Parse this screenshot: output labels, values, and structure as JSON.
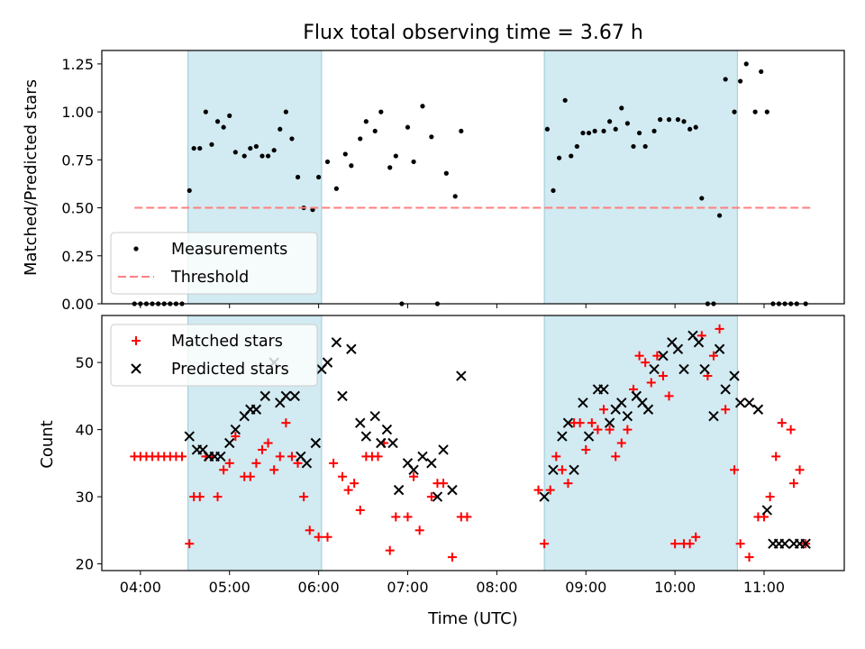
{
  "chart_data": [
    {
      "type": "scatter",
      "title": "Flux total observing time = 3.67 h",
      "xlabel": "",
      "ylabel": "Matched/Predicted stars",
      "xlim": [
        "03:34",
        "11:54"
      ],
      "ylim": [
        0,
        1.32
      ],
      "yticks": [
        "0.00",
        "0.25",
        "0.50",
        "0.75",
        "1.00",
        "1.25"
      ],
      "ytick_values": [
        0,
        0.25,
        0.5,
        0.75,
        1.0,
        1.25
      ],
      "shaded_intervals": [
        [
          "04:32",
          "06:02"
        ],
        [
          "08:32",
          "10:42"
        ]
      ],
      "legend": {
        "position": "lower-left",
        "entries": [
          "Measurements",
          "Threshold"
        ]
      },
      "series": [
        {
          "name": "Measurements",
          "marker": "dot",
          "color": "#000000",
          "x": [
            "03:56",
            "04:00",
            "04:04",
            "04:08",
            "04:12",
            "04:16",
            "04:20",
            "04:24",
            "04:28",
            "04:33",
            "04:36",
            "04:40",
            "04:44",
            "04:48",
            "04:52",
            "04:56",
            "05:00",
            "05:04",
            "05:10",
            "05:14",
            "05:18",
            "05:22",
            "05:26",
            "05:30",
            "05:34",
            "05:38",
            "05:42",
            "05:46",
            "05:50",
            "05:56",
            "06:00",
            "06:06",
            "06:12",
            "06:18",
            "06:22",
            "06:28",
            "06:32",
            "06:38",
            "06:42",
            "06:48",
            "06:52",
            "06:56",
            "07:00",
            "07:04",
            "07:10",
            "07:16",
            "07:20",
            "07:26",
            "07:32",
            "07:36",
            "8:34",
            "8:38",
            "8:42",
            "8:46",
            "8:50",
            "8:54",
            "8:58",
            "9:02",
            "9:06",
            "9:12",
            "9:16",
            "9:20",
            "9:24",
            "9:28",
            "9:32",
            "9:36",
            "9:40",
            "9:46",
            "9:50",
            "9:56",
            "10:02",
            "10:06",
            "10:10",
            "10:14",
            "10:18",
            "10:22",
            "10:26",
            "10:30",
            "10:34",
            "10:40",
            "10:44",
            "10:48",
            "10:54",
            "10:58",
            "11:02",
            "11:06",
            "11:10",
            "11:14",
            "11:18",
            "11:22",
            "11:28"
          ],
          "y": [
            0.0,
            0.0,
            0.0,
            0.0,
            0.0,
            0.0,
            0.0,
            0.0,
            0.0,
            0.59,
            0.81,
            0.81,
            1.0,
            0.83,
            0.95,
            0.92,
            0.98,
            0.79,
            0.77,
            0.81,
            0.82,
            0.77,
            0.77,
            0.8,
            0.91,
            1.0,
            0.86,
            0.66,
            0.5,
            0.49,
            0.66,
            0.74,
            0.6,
            0.78,
            0.72,
            0.86,
            0.95,
            0.9,
            1.0,
            0.71,
            0.77,
            0.0,
            0.92,
            0.74,
            1.03,
            0.87,
            0.0,
            0.68,
            0.56,
            0.9,
            0.91,
            0.59,
            0.76,
            1.06,
            0.77,
            0.82,
            0.89,
            0.89,
            0.9,
            0.9,
            0.95,
            0.91,
            1.02,
            0.94,
            0.82,
            0.89,
            0.82,
            0.9,
            0.96,
            0.96,
            0.96,
            0.95,
            0.91,
            0.92,
            0.55,
            0.0,
            0.0,
            0.46,
            1.17,
            1.0,
            1.16,
            1.25,
            1.0,
            1.21,
            1.0,
            0.0,
            0.0,
            0.0,
            0.0,
            0.0,
            0.0
          ]
        },
        {
          "name": "Threshold",
          "marker": "dashed-line",
          "color": "#ff7f7f",
          "x": [
            "03:56",
            "11:32"
          ],
          "y": [
            0.5,
            0.5
          ]
        }
      ]
    },
    {
      "type": "scatter",
      "title": "",
      "xlabel": "Time (UTC)",
      "ylabel": "Count",
      "xlim": [
        "03:34",
        "11:54"
      ],
      "ylim": [
        19,
        57
      ],
      "yticks": [
        "20",
        "30",
        "40",
        "50"
      ],
      "ytick_values": [
        20,
        30,
        40,
        50
      ],
      "xticks": [
        "04:00",
        "05:00",
        "06:00",
        "07:00",
        "08:00",
        "09:00",
        "10:00",
        "11:00"
      ],
      "shaded_intervals": [
        [
          "04:32",
          "06:02"
        ],
        [
          "08:32",
          "10:42"
        ]
      ],
      "legend": {
        "position": "top-left",
        "entries": [
          "Matched stars",
          "Predicted stars"
        ]
      },
      "series": [
        {
          "name": "Matched stars",
          "marker": "plus",
          "color": "#ff0000",
          "x": [
            "03:56",
            "04:00",
            "04:04",
            "04:08",
            "04:12",
            "04:16",
            "04:20",
            "04:24",
            "04:28",
            "04:33",
            "04:36",
            "04:40",
            "04:44",
            "04:48",
            "04:52",
            "04:56",
            "05:00",
            "05:04",
            "05:10",
            "05:14",
            "05:18",
            "05:22",
            "05:26",
            "05:30",
            "05:34",
            "05:38",
            "05:42",
            "05:46",
            "05:50",
            "05:54",
            "06:00",
            "06:06",
            "06:10",
            "06:16",
            "06:20",
            "06:24",
            "06:28",
            "06:32",
            "06:36",
            "06:40",
            "06:44",
            "06:48",
            "06:52",
            "07:00",
            "07:04",
            "07:08",
            "07:16",
            "07:20",
            "07:24",
            "07:30",
            "07:36",
            "07:40",
            "8:28",
            "8:32",
            "8:36",
            "8:40",
            "8:44",
            "8:48",
            "8:52",
            "8:56",
            "9:00",
            "9:04",
            "9:08",
            "9:12",
            "9:16",
            "9:20",
            "9:24",
            "9:28",
            "9:32",
            "9:36",
            "9:40",
            "9:44",
            "9:48",
            "9:52",
            "9:56",
            "10:00",
            "10:06",
            "10:10",
            "10:14",
            "10:18",
            "10:22",
            "10:26",
            "10:30",
            "10:34",
            "10:40",
            "10:44",
            "10:50",
            "10:56",
            "11:00",
            "11:04",
            "11:08",
            "11:12",
            "11:18",
            "11:20",
            "11:24",
            "11:28"
          ],
          "y": [
            36,
            36,
            36,
            36,
            36,
            36,
            36,
            36,
            36,
            23,
            30,
            30,
            36,
            36,
            30,
            34,
            35,
            39,
            33,
            33,
            35,
            37,
            38,
            34,
            36,
            41,
            36,
            35,
            30,
            25,
            24,
            24,
            35,
            33,
            31,
            32,
            28,
            36,
            36,
            36,
            38,
            22,
            27,
            27,
            33,
            25,
            30,
            32,
            32,
            21,
            27,
            27,
            31,
            23,
            31,
            36,
            34,
            32,
            41,
            41,
            37,
            41,
            40,
            43,
            40,
            36,
            38,
            40,
            46,
            51,
            50,
            47,
            51,
            48,
            45,
            23,
            23,
            23,
            24,
            54,
            48,
            51,
            55,
            43,
            34,
            23,
            21,
            27,
            27,
            30,
            36,
            41,
            40,
            32,
            34,
            23
          ],
          "_note": ""
        },
        {
          "name": "Predicted stars",
          "marker": "x",
          "color": "#000000",
          "x": [
            "04:33",
            "04:38",
            "04:42",
            "04:46",
            "04:50",
            "04:54",
            "05:00",
            "05:04",
            "05:10",
            "05:14",
            "05:18",
            "05:24",
            "05:30",
            "05:34",
            "05:38",
            "05:44",
            "05:48",
            "05:52",
            "05:58",
            "06:02",
            "06:06",
            "06:12",
            "06:16",
            "06:22",
            "06:28",
            "06:32",
            "06:38",
            "06:42",
            "06:46",
            "06:50",
            "06:54",
            "07:00",
            "07:04",
            "07:10",
            "07:16",
            "07:20",
            "07:24",
            "07:30",
            "07:36",
            "8:32",
            "8:38",
            "8:44",
            "8:48",
            "8:52",
            "8:58",
            "9:02",
            "9:08",
            "9:12",
            "9:16",
            "9:20",
            "9:24",
            "9:28",
            "9:34",
            "9:38",
            "9:42",
            "9:46",
            "9:52",
            "9:58",
            "10:02",
            "10:06",
            "10:12",
            "10:16",
            "10:20",
            "10:26",
            "10:30",
            "10:34",
            "10:40",
            "10:44",
            "10:50",
            "10:56",
            "11:02",
            "11:06",
            "11:10",
            "11:14",
            "11:20",
            "11:24",
            "11:28"
          ],
          "y": [
            39,
            37,
            37,
            36,
            36,
            36,
            38,
            40,
            42,
            43,
            43,
            45,
            50,
            44,
            45,
            45,
            36,
            35,
            38,
            49,
            50,
            53,
            45,
            52,
            41,
            39,
            42,
            38,
            40,
            38,
            31,
            35,
            34,
            36,
            35,
            30,
            37,
            31,
            48,
            30,
            34,
            39,
            41,
            34,
            44,
            39,
            46,
            46,
            41,
            43,
            44,
            42,
            45,
            44,
            43,
            49,
            51,
            53,
            52,
            49,
            54,
            53,
            49,
            42,
            52,
            46,
            48,
            44,
            44,
            43,
            28,
            23,
            23,
            23,
            23,
            23,
            23
          ]
        }
      ]
    }
  ]
}
